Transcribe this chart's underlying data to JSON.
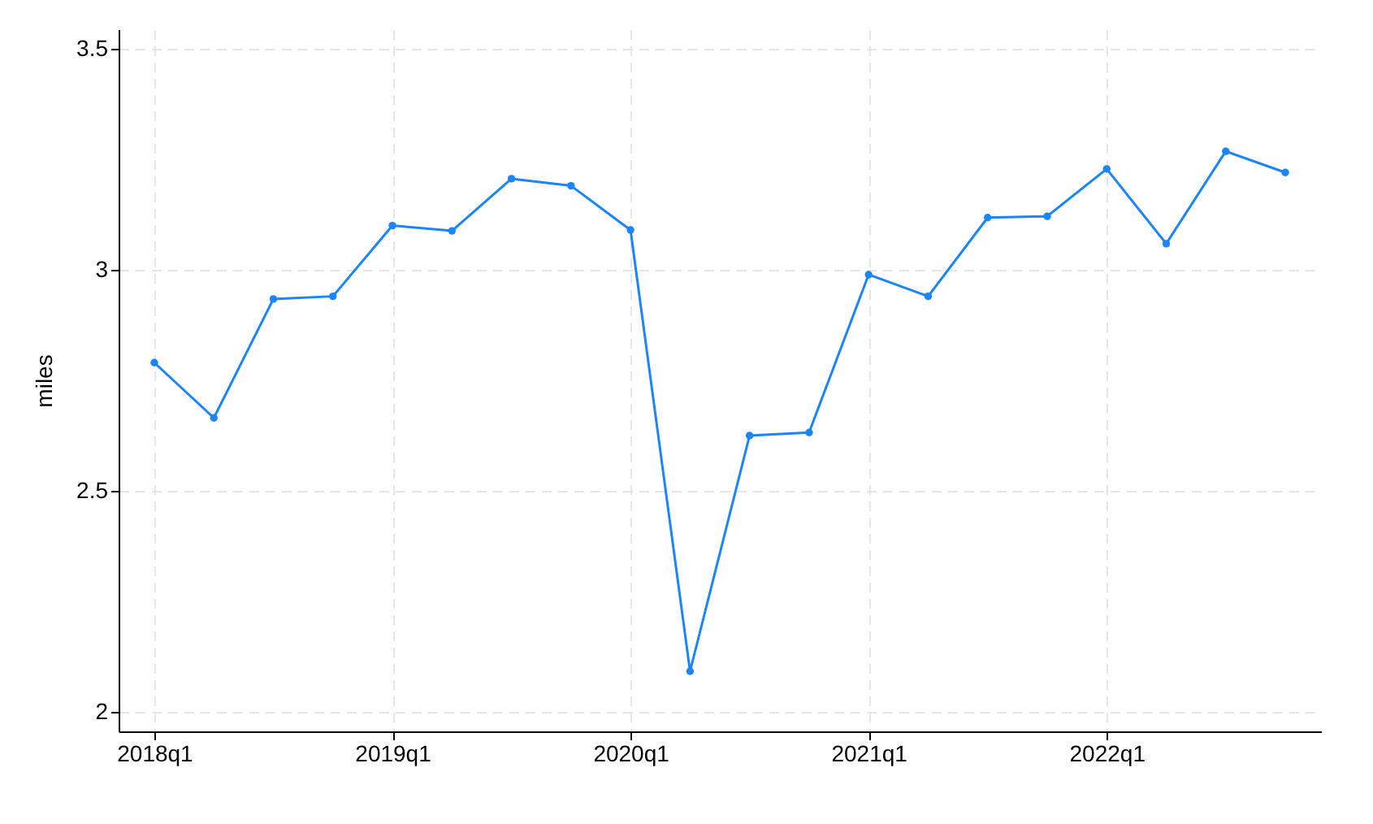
{
  "chart_data": {
    "type": "line",
    "ylabel": "miles",
    "categories": [
      "2018q1",
      null,
      null,
      null,
      "2019q1",
      null,
      null,
      null,
      "2020q1",
      null,
      null,
      null,
      "2021q1",
      null,
      null,
      null,
      "2022q1",
      null,
      null,
      null
    ],
    "series": [
      {
        "color": "#1a85ff",
        "values": [
          2.79,
          2.665,
          2.934,
          2.94,
          3.1,
          3.088,
          3.206,
          3.19,
          3.09,
          2.092,
          2.625,
          2.632,
          2.989,
          2.94,
          3.118,
          3.121,
          3.228,
          3.059,
          3.268,
          3.22
        ]
      }
    ],
    "ylim": [
      1.956,
      3.544
    ],
    "yticks": [
      2,
      2.5,
      3,
      3.5
    ],
    "grid": true,
    "marker": "circle",
    "line_style": "solid"
  }
}
